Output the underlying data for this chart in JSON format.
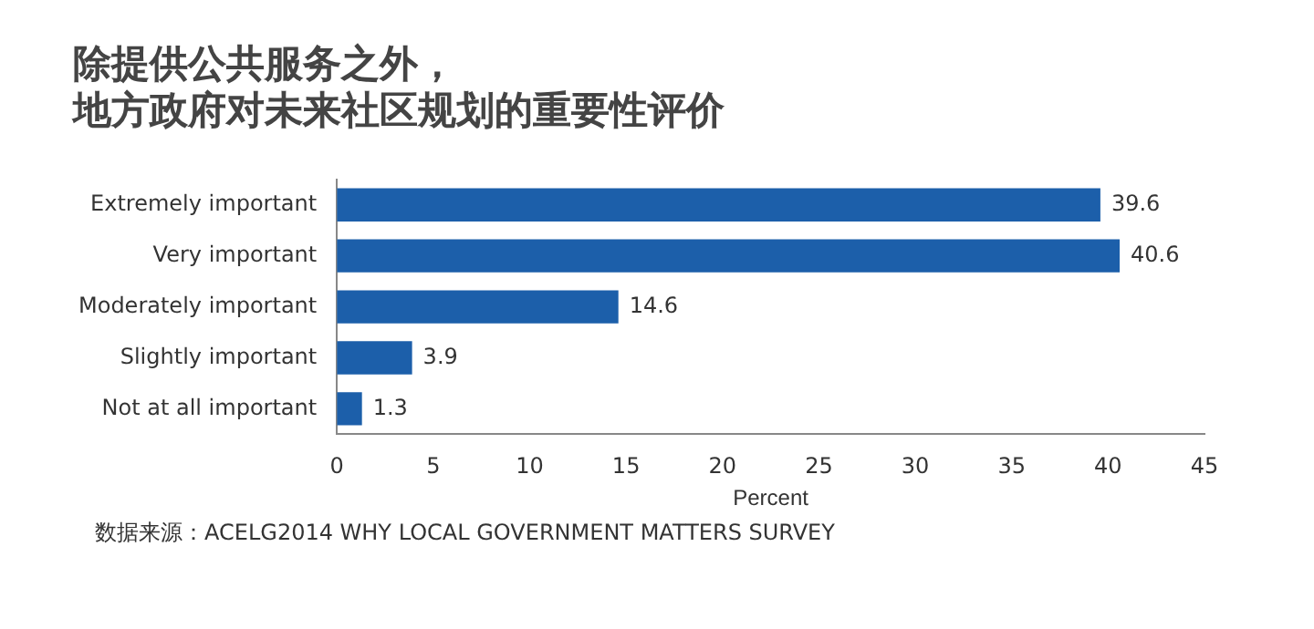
{
  "chart_data": {
    "type": "bar",
    "orientation": "horizontal",
    "title": "除提供公共服务之外，地方政府对未来社区规划的重要性评价",
    "categories": [
      "Extremely important",
      "Very important",
      "Moderately important",
      "Slightly important",
      "Not at all important"
    ],
    "values": [
      39.6,
      40.6,
      14.6,
      3.9,
      1.3
    ],
    "color": "#1c5faa",
    "data_labels": true,
    "xlabel": "Percent",
    "xlim": [
      0,
      45
    ],
    "xticks": [
      0,
      5,
      10,
      15,
      20,
      25,
      30,
      35,
      40,
      45
    ],
    "grid": false,
    "legend": false,
    "annotations": [
      "数据来源：ACELG2014 WHY LOCAL GOVERNMENT MATTERS SURVEY"
    ]
  }
}
